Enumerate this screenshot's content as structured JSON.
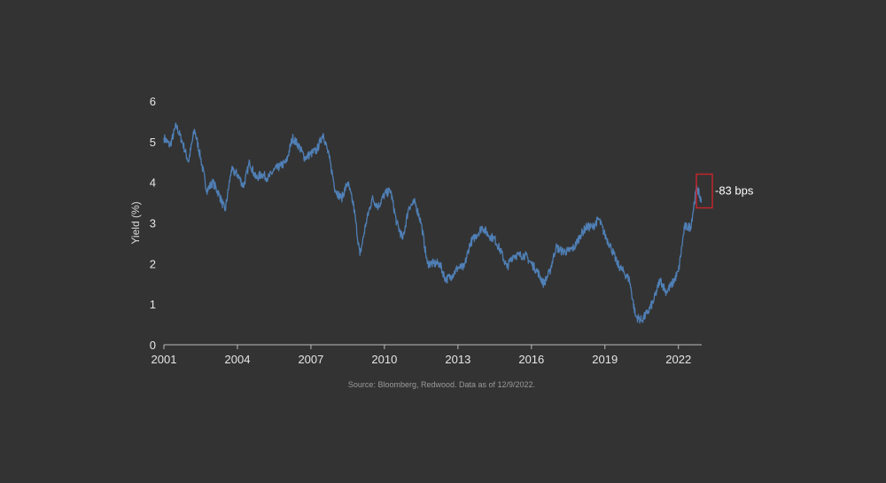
{
  "chart_data": {
    "type": "line",
    "title": "",
    "xlabel": "",
    "ylabel": "Yield (%)",
    "xlim": [
      2001.0,
      2022.95
    ],
    "ylim": [
      0,
      6
    ],
    "x_ticks": [
      2001,
      2004,
      2007,
      2010,
      2013,
      2016,
      2019,
      2022
    ],
    "x_tick_labels": [
      "2001",
      "2004",
      "2007",
      "2010",
      "2013",
      "2016",
      "2019",
      "2022"
    ],
    "y_ticks": [
      0,
      1,
      2,
      3,
      4,
      5,
      6
    ],
    "y_tick_labels": [
      "0",
      "1",
      "2",
      "3",
      "4",
      "5",
      "6"
    ],
    "grid": false,
    "series": [
      {
        "color": "#4f7fb5",
        "x": [
          2001.0,
          2001.25,
          2001.5,
          2001.75,
          2002.0,
          2002.25,
          2002.5,
          2002.75,
          2003.0,
          2003.25,
          2003.5,
          2003.75,
          2004.0,
          2004.25,
          2004.5,
          2004.75,
          2005.0,
          2005.25,
          2005.5,
          2005.75,
          2006.0,
          2006.25,
          2006.5,
          2006.75,
          2007.0,
          2007.25,
          2007.5,
          2007.75,
          2008.0,
          2008.25,
          2008.5,
          2008.75,
          2009.0,
          2009.25,
          2009.5,
          2009.75,
          2010.0,
          2010.25,
          2010.5,
          2010.75,
          2011.0,
          2011.25,
          2011.5,
          2011.75,
          2012.0,
          2012.25,
          2012.5,
          2012.75,
          2013.0,
          2013.25,
          2013.5,
          2013.75,
          2014.0,
          2014.25,
          2014.5,
          2014.75,
          2015.0,
          2015.25,
          2015.5,
          2015.75,
          2016.0,
          2016.25,
          2016.5,
          2016.75,
          2017.0,
          2017.25,
          2017.5,
          2017.75,
          2018.0,
          2018.25,
          2018.5,
          2018.75,
          2019.0,
          2019.25,
          2019.5,
          2019.75,
          2020.0,
          2020.25,
          2020.5,
          2020.75,
          2021.0,
          2021.25,
          2021.5,
          2021.75,
          2022.0,
          2022.25,
          2022.5,
          2022.75,
          2022.94
        ],
        "y": [
          5.1,
          4.9,
          5.4,
          5.0,
          4.5,
          5.3,
          4.6,
          3.8,
          4.0,
          3.7,
          3.3,
          4.3,
          4.2,
          3.9,
          4.5,
          4.1,
          4.2,
          4.1,
          4.3,
          4.4,
          4.5,
          5.1,
          4.9,
          4.6,
          4.7,
          4.8,
          5.2,
          4.6,
          3.8,
          3.6,
          4.0,
          3.4,
          2.2,
          3.0,
          3.6,
          3.4,
          3.7,
          3.8,
          3.0,
          2.6,
          3.4,
          3.5,
          3.0,
          2.0,
          2.0,
          2.0,
          1.6,
          1.7,
          1.9,
          1.9,
          2.5,
          2.7,
          2.9,
          2.7,
          2.6,
          2.3,
          1.9,
          2.2,
          2.2,
          2.2,
          2.0,
          1.8,
          1.5,
          1.8,
          2.4,
          2.3,
          2.3,
          2.4,
          2.7,
          2.9,
          2.9,
          3.1,
          2.7,
          2.4,
          2.0,
          1.8,
          1.6,
          0.7,
          0.6,
          0.8,
          1.1,
          1.6,
          1.3,
          1.5,
          1.8,
          2.9,
          2.9,
          3.9,
          3.5
        ]
      }
    ],
    "annotations": [
      {
        "text": "-83 bps",
        "y_top": 4.2,
        "y_bottom": 3.37,
        "color": "#c0262d"
      }
    ],
    "source_note": "Source: Bloomberg, Redwood. Data as of 12/9/2022."
  }
}
